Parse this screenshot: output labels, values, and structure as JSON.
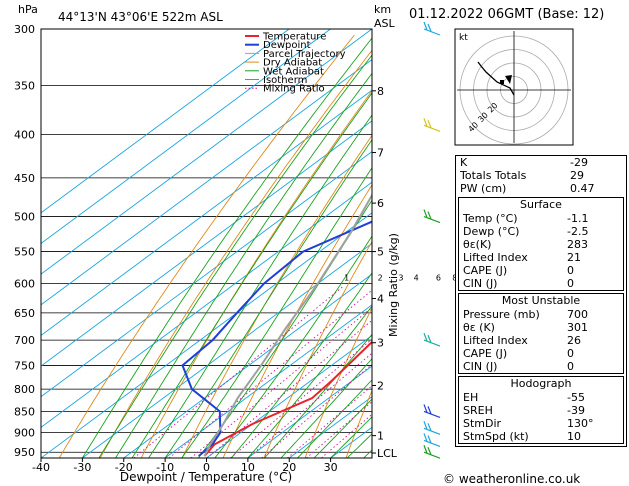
{
  "header": {
    "pressure_unit": "hPa",
    "location": "44°13'N 43°06'E 522m ASL",
    "height_unit": "km",
    "height_unit2": "ASL",
    "datetime": "01.12.2022 06GMT (Base: 12)"
  },
  "legend": [
    "Temperature",
    "Dewpoint",
    "Parcel Trajectory",
    "Dry Adiabat",
    "Wet Adiabat",
    "Isotherm",
    "Mixing Ratio"
  ],
  "colors": {
    "temperature": "#e8242a",
    "dewpoint": "#1f3fd6",
    "parcel": "#a0a0a0",
    "dry_adiabat": "#e08a1a",
    "wet_adiabat": "#19a31e",
    "isotherm": "#1aa6e0",
    "mixing_ratio": "#d0109a"
  },
  "chart_data": {
    "type": "line",
    "title": "",
    "xlabel": "Dewpoint / Temperature (°C)",
    "ylabel": "Mixing Ratio (g/kg)",
    "xlim": [
      -40,
      40
    ],
    "x_ticks": [
      -40,
      -30,
      -20,
      -10,
      0,
      10,
      20,
      30
    ],
    "pressure_ticks": [
      300,
      350,
      400,
      450,
      500,
      550,
      600,
      650,
      700,
      750,
      800,
      850,
      900,
      950
    ],
    "height_ticks": [
      {
        "label": "8",
        "p": 355
      },
      {
        "label": "7",
        "p": 420
      },
      {
        "label": "6",
        "p": 482
      },
      {
        "label": "5",
        "p": 550
      },
      {
        "label": "4",
        "p": 625
      },
      {
        "label": "3",
        "p": 705
      },
      {
        "label": "2",
        "p": 792
      },
      {
        "label": "1",
        "p": 908
      },
      {
        "label": "LCL",
        "p": 952
      }
    ],
    "mixing_ratio_labels": [
      "1",
      "2",
      "3",
      "4",
      "6",
      "8",
      "10",
      "15",
      "20",
      "25"
    ],
    "series": [
      {
        "name": "Temperature",
        "points": [
          [
            -1.1,
            960
          ],
          [
            -2.5,
            930
          ],
          [
            0,
            880
          ],
          [
            6,
            820
          ],
          [
            5,
            780
          ],
          [
            2,
            700
          ],
          [
            -5,
            600
          ],
          [
            -13,
            500
          ],
          [
            -22,
            410
          ],
          [
            -30,
            350
          ],
          [
            -37,
            300
          ]
        ]
      },
      {
        "name": "Dewpoint",
        "points": [
          [
            -2.5,
            960
          ],
          [
            -3,
            930
          ],
          [
            -5,
            900
          ],
          [
            -12,
            850
          ],
          [
            -26,
            800
          ],
          [
            -36,
            750
          ],
          [
            -37,
            700
          ],
          [
            -40,
            650
          ],
          [
            -43,
            600
          ],
          [
            -44,
            550
          ],
          [
            -36,
            500
          ],
          [
            -25,
            450
          ],
          [
            -31,
            400
          ],
          [
            -44,
            350
          ],
          [
            -41,
            300
          ]
        ]
      },
      {
        "name": "Parcel Trajectory",
        "points": [
          [
            -1.1,
            960
          ],
          [
            -3.5,
            930
          ],
          [
            -7,
            880
          ],
          [
            -12,
            820
          ],
          [
            -17,
            750
          ],
          [
            -23,
            680
          ],
          [
            -30,
            600
          ],
          [
            -39,
            520
          ],
          [
            -49,
            450
          ],
          [
            -60,
            380
          ],
          [
            -72,
            300
          ]
        ]
      }
    ]
  },
  "hodograph": {
    "label": "kt",
    "ring_labels": [
      "20",
      "30",
      "40"
    ]
  },
  "indices": [
    {
      "label": "K",
      "value": "-29"
    },
    {
      "label": "Totals Totals",
      "value": "29"
    },
    {
      "label": "PW (cm)",
      "value": "0.47"
    }
  ],
  "surface": {
    "title": "Surface",
    "rows": [
      {
        "label": "Temp (°C)",
        "value": "-1.1"
      },
      {
        "label": "Dewp (°C)",
        "value": "-2.5"
      },
      {
        "label": "θε(K)",
        "value": "283"
      },
      {
        "label": "Lifted Index",
        "value": "21"
      },
      {
        "label": "CAPE (J)",
        "value": "0"
      },
      {
        "label": "CIN (J)",
        "value": "0"
      }
    ]
  },
  "most_unstable": {
    "title": "Most Unstable",
    "rows": [
      {
        "label": "Pressure (mb)",
        "value": "700"
      },
      {
        "label": "θε (K)",
        "value": "301"
      },
      {
        "label": "Lifted Index",
        "value": "26"
      },
      {
        "label": "CAPE (J)",
        "value": "0"
      },
      {
        "label": "CIN (J)",
        "value": "0"
      }
    ]
  },
  "hodograph_stats": {
    "title": "Hodograph",
    "rows": [
      {
        "label": "EH",
        "value": "-55"
      },
      {
        "label": "SREH",
        "value": "-39"
      },
      {
        "label": "StmDir",
        "value": "130°"
      },
      {
        "label": "StmSpd (kt)",
        "value": "10"
      }
    ]
  },
  "footer": "© weatheronline.co.uk"
}
